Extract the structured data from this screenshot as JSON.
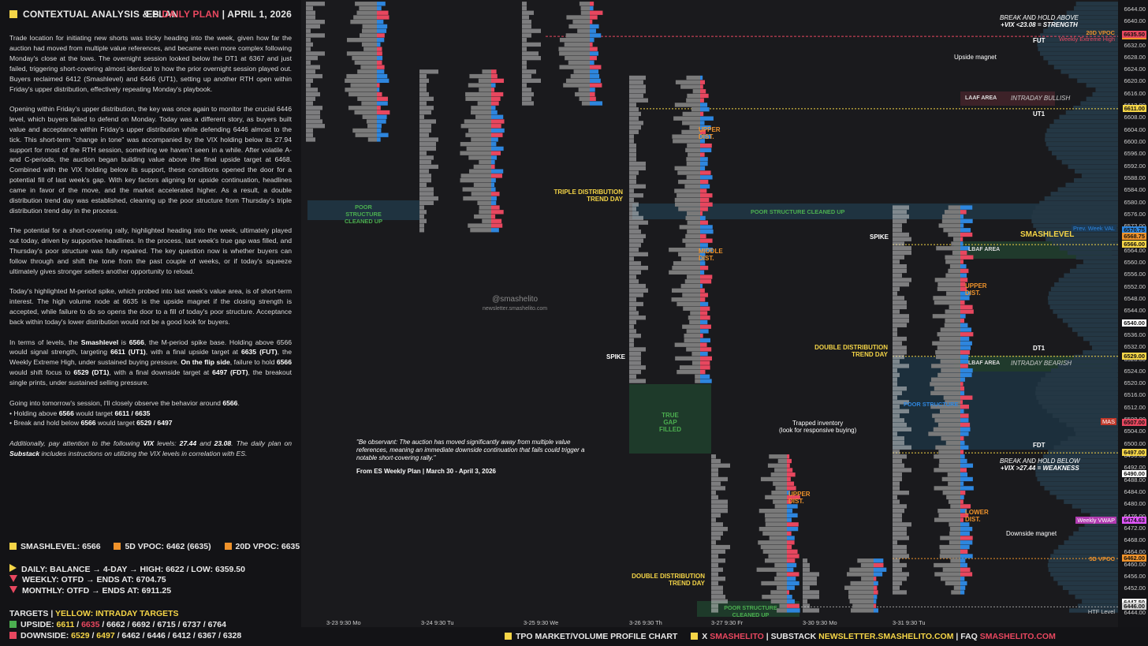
{
  "header": {
    "left_title": "CONTEXTUAL ANALYSIS & PLAN",
    "right_es": "ES",
    "right_plan": "DAILY PLAN",
    "right_sep": "|",
    "right_date": "APRIL 1, 2026"
  },
  "paragraphs": [
    "Trade location for initiating new shorts was tricky heading into the week, given how far the auction had moved from multiple value references, and became even more complex following Monday's close at the lows. The overnight session looked below the DT1 at 6367 and just failed, triggering short-covering almost identical to how the prior overnight session played out. Buyers reclaimed 6412 (Smashlevel) and 6446 (UT1), setting up another RTH open within Friday's upper distribution, effectively repeating Monday's playbook.",
    "Opening within Friday's upper distribution, the key was once again to monitor the crucial 6446 level, which buyers failed to defend on Monday. Today was a different story, as buyers built value and acceptance within Friday's upper distribution while defending 6446 almost to the tick. This short-term \"change in tone\" was accompanied by the VIX holding below its 27.94 support for most of the RTH session, something we haven't seen in a while. After volatile A- and C-periods, the auction began building value above the final upside target at 6468. Combined with the VIX holding below its support, these conditions opened the door for a potential fill of last week's gap. With key factors aligning for upside continuation, headlines came in favor of the move, and the market accelerated higher. As a result, a double distribution trend day was established, cleaning up the poor structure from Thursday's triple distribution trend day in the process.",
    "The potential for a short-covering rally, highlighted heading into the week, ultimately played out today, driven by supportive headlines. In the process, last week's true gap was filled, and Thursday's poor structure was fully repaired. The key question now is whether buyers can follow through and shift the tone from the past couple of weeks, or if today's squeeze ultimately gives stronger sellers another opportunity to reload.",
    "Today's highlighted M-period spike, which probed into last week's value area, is of short-term interest. The high volume node at 6635 is the upside magnet if the closing strength is accepted, while failure to do so opens the door to a fill of today's poor structure. Acceptance back within today's lower distribution would not be a good look for buyers."
  ],
  "levels_para": {
    "t1": "In terms of levels, the ",
    "b1": "Smashlevel",
    "t2": " is ",
    "b2": "6566",
    "t3": ", the M-period spike base. Holding above 6566 would signal strength, targeting ",
    "b3": "6611 (UT1)",
    "t4": ", with a final upside target at ",
    "b4": "6635 (FUT)",
    "t5": ", the Weekly Extreme High, under sustained buying pressure. ",
    "b5": "On the flip side",
    "t6": ", failure to hold ",
    "b6": "6566",
    "t7": " would shift focus to ",
    "b7": "6529 (DT1)",
    "t8": ", with a final downside target at ",
    "b8": "6497 (FDT)",
    "t9": ", the breakout single prints, under sustained selling pressure."
  },
  "session": {
    "intro_a": "Going into tomorrow's session, I'll closely observe the behavior around ",
    "intro_b": "6566",
    "intro_c": ".",
    "l1a": "• Holding above ",
    "l1b": "6566",
    "l1c": " would target ",
    "l1d": "6611 / 6635",
    "l2a": "• Break and hold below ",
    "l2b": "6566",
    "l2c": " would target ",
    "l2d": "6529 / 6497"
  },
  "vix_note": {
    "a": "Additionally, pay attention to the following ",
    "b": "VIX",
    "c": " levels: ",
    "d": "27.44",
    "e": " and ",
    "f": "23.08",
    "g": ". The daily plan on ",
    "h": "Substack",
    "i": " includes instructions on utilizing the VIX levels in correlation with ES."
  },
  "stats": {
    "smashlevel": "SMASHLEVEL: 6566",
    "vpoc5": "5D VPOC: 6462 (6635)",
    "vpoc20": "20D VPOC: 6635",
    "daily": "DAILY: BALANCE → 4-DAY → HIGH: 6622 / LOW: 6359.50",
    "weekly": "WEEKLY: OTFD → ENDS AT: 6704.75",
    "monthly": "MONTHLY: OTFD → ENDS AT: 6911.25",
    "targets_title": "TARGETS",
    "targets_sep": "|",
    "targets_yellow": "YELLOW: INTRADAY TARGETS",
    "upside_label": "UPSIDE:",
    "upside_y1": "6611",
    "upside_sep1": " / ",
    "upside_y2": "6635",
    "upside_rest": " / 6662 / 6692 / 6715 / 6737 / 6764",
    "downside_label": "DOWNSIDE:",
    "downside_y1": "6529",
    "downside_sep1": " / ",
    "downside_y2": "6497",
    "downside_rest": " / 6462 / 6446 / 6412 / 6367 / 6328"
  },
  "footer": {
    "chart_label": "TPO MARKET/VOLUME PROFILE CHART",
    "x_label": "X",
    "x_handle": "SMASHELITO",
    "substack_label": "SUBSTACK",
    "substack_url": "NEWSLETTER.SMASHELITO.COM",
    "faq_label": "FAQ",
    "faq_url": "SMASHELITO.COM",
    "sep": "|"
  },
  "chart_data": {
    "type": "tpo-profile",
    "y_axis_ticks": [
      6644,
      6640,
      6636,
      6632,
      6628,
      6624,
      6620,
      6616,
      6612,
      6608,
      6604,
      6600,
      6596,
      6592,
      6588,
      6584,
      6580,
      6576,
      6572,
      6568,
      6564,
      6560,
      6556,
      6552,
      6548,
      6544,
      6540,
      6536,
      6532,
      6528,
      6524,
      6520,
      6516,
      6512,
      6508,
      6504,
      6500,
      6496,
      6492,
      6488,
      6484,
      6480,
      6476,
      6472,
      6468,
      6464,
      6460,
      6456,
      6452,
      6448,
      6444
    ],
    "ylim": [
      6444,
      6646
    ],
    "x_ticks": [
      "3-23  9:30 Mo",
      "3-24  9:30 Tu",
      "3-25  9:30 We",
      "3-26  9:30 Th",
      "3-27  9:30 Fr",
      "3-30  9:30 Mo",
      "3-31  9:30 Tu"
    ],
    "price_tags": [
      {
        "label": "20D VPOC",
        "value": "6635.00",
        "color": "#f0932b"
      },
      {
        "label": "Weekly Extreme High",
        "value": "6635.50",
        "color": "#e8475f"
      },
      {
        "label": "",
        "value": "6611.00",
        "color": "#f5d547"
      },
      {
        "label": "Prev. Week VAL",
        "value": "6570.75",
        "color": "#2e86de"
      },
      {
        "label": "",
        "value": "6568.75",
        "color": "#f0932b"
      },
      {
        "label": "",
        "value": "6566.00",
        "color": "#f5d547"
      },
      {
        "label": "",
        "value": "6540.00",
        "color": "#ffffff"
      },
      {
        "label": "",
        "value": "6529.00",
        "color": "#f5d547"
      },
      {
        "label": "MAS",
        "value": "6507.00",
        "color": "#e8475f"
      },
      {
        "label": "",
        "value": "6497.00",
        "color": "#f5d547"
      },
      {
        "label": "",
        "value": "6490.00",
        "color": "#ffffff"
      },
      {
        "label": "Weekly VWAP",
        "value": "6474.63",
        "color": "#e056fd"
      },
      {
        "label": "5D VPOC",
        "value": "6462.00",
        "color": "#f0932b"
      },
      {
        "label": "",
        "value": "6447.50",
        "color": "#ffffff"
      },
      {
        "label": "HTF Level",
        "value": "6446.00",
        "color": "#cfcfcf"
      }
    ],
    "annotations": {
      "vix_strength_1": "BREAK AND HOLD ABOVE",
      "vix_strength_2": "+VIX <23.08 = STRENGTH",
      "vix_weakness_1": "BREAK AND HOLD BELOW",
      "vix_weakness_2": "+VIX >27.44 = WEAKNESS",
      "fut": "FUT",
      "ut1": "UT1",
      "dt1": "DT1",
      "fdt": "FDT",
      "smashlevel": "SMASHLEVEL",
      "upside_magnet": "Upside magnet",
      "downside_magnet": "Downside magnet",
      "laaf": "LAAF AREA",
      "lbaf_1": "LBAF AREA",
      "lbaf_2": "LBAF AREA",
      "intraday_bullish": "INTRADAY BULLISH",
      "intraday_bearish": "INTRADAY BEARISH",
      "poor_structure_1": "POOR STRUCTURE CLEANED UP",
      "poor_structure_2": "POOR STRUCTURE CLEANED UP",
      "poor_structure_3": "POOR STRUCTURE",
      "poor_structure_4": "POOR STRUCTURE CLEANED UP",
      "true_gap": "TRUE GAP FILLED",
      "triple_dist": "TRIPLE DISTRIBUTION TREND DAY",
      "double_dist_1": "DOUBLE DISTRIBUTION TREND DAY",
      "double_dist_2": "DOUBLE DISTRIBUTION TREND DAY",
      "upper_dist_1": "UPPER DIST.",
      "middle_dist": "MIDDLE DIST.",
      "upper_dist_2": "UPPER DIST.",
      "upper_dist_3": "UPPER DIST.",
      "lower_dist": "LOWER DIST.",
      "spike_1": "SPIKE",
      "spike_2": "SPIKE",
      "trapped_1": "Trapped inventory",
      "trapped_2": "(look for responsive buying)",
      "watermark_1": "@smashelito",
      "watermark_2": "newsletter.smashelito.com",
      "quote": "\"Be observant: The auction has moved significantly away from multiple value references, meaning an immediate downside continuation that fails could trigger a notable short-covering rally.\"",
      "quote_src": "From ES Weekly Plan | March 30 - April 3, 2026"
    }
  },
  "colors": {
    "yellow": "#f5d547",
    "orange": "#f0932b",
    "red": "#e8475f",
    "green": "#4caf50",
    "blue": "#2e86de",
    "profile_grey": "#7a7a7a"
  }
}
